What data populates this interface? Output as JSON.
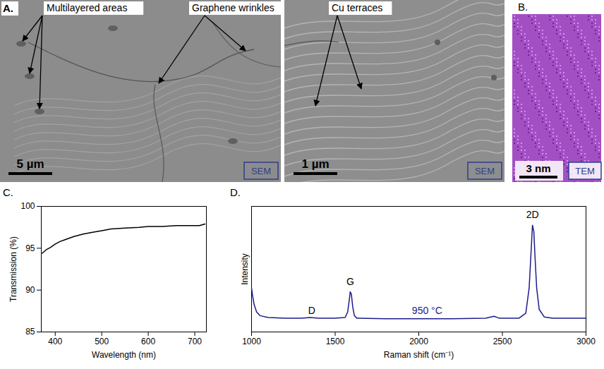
{
  "figure": {
    "A": {
      "letter": "A.",
      "annotations": [
        "Multilayered areas",
        "Graphene wrinkles",
        "Cu terraces"
      ],
      "images": [
        {
          "scale_bar": "5 µm",
          "label": "SEM"
        },
        {
          "scale_bar": "1 µm",
          "label": "SEM"
        }
      ]
    },
    "B": {
      "letter": "B.",
      "scale_bar": "3 nm",
      "label": "TEM"
    }
  },
  "chart_data": [
    {
      "title": "C.",
      "type": "line",
      "x_label": "Wavelength (nm)",
      "y_label": "Transmission (%)",
      "color": "#000000",
      "x": [
        372,
        380,
        390,
        400,
        410,
        420,
        440,
        460,
        480,
        500,
        520,
        550,
        580,
        600,
        630,
        660,
        690,
        710,
        722
      ],
      "values": [
        94.4,
        94.8,
        95.1,
        95.5,
        95.8,
        96.0,
        96.4,
        96.7,
        96.9,
        97.1,
        97.3,
        97.4,
        97.5,
        97.6,
        97.6,
        97.7,
        97.7,
        97.7,
        97.9
      ],
      "xlim": [
        370,
        725
      ],
      "xticks": [
        400,
        500,
        600,
        700
      ],
      "ylim": [
        85,
        100
      ],
      "yticks": [
        85,
        90,
        95,
        100
      ],
      "grid": false
    },
    {
      "title": "D.",
      "type": "line",
      "x_label": "Raman shift (cm⁻¹)",
      "y_label": "Intensity",
      "color": "#1c1c8c",
      "x": [
        1000,
        1005,
        1015,
        1030,
        1050,
        1100,
        1200,
        1300,
        1350,
        1400,
        1500,
        1560,
        1575,
        1585,
        1590,
        1597,
        1605,
        1615,
        1630,
        1800,
        2000,
        2200,
        2400,
        2450,
        2480,
        2600,
        2640,
        2660,
        2670,
        2680,
        2688,
        2695,
        2705,
        2720,
        2750,
        2800,
        3000
      ],
      "values": [
        0.35,
        0.3,
        0.22,
        0.16,
        0.13,
        0.115,
        0.11,
        0.11,
        0.115,
        0.11,
        0.11,
        0.115,
        0.16,
        0.26,
        0.32,
        0.3,
        0.2,
        0.13,
        0.11,
        0.105,
        0.105,
        0.105,
        0.11,
        0.125,
        0.11,
        0.11,
        0.15,
        0.35,
        0.6,
        0.85,
        0.8,
        0.6,
        0.35,
        0.18,
        0.12,
        0.11,
        0.11
      ],
      "xlim": [
        1000,
        3000
      ],
      "xticks": [
        1000,
        1500,
        2000,
        2500,
        3000
      ],
      "ylim": [
        0,
        1
      ],
      "tick_labels": "x",
      "grid": false,
      "annotations": [
        {
          "text": "D",
          "x": 1360,
          "y": 0.17,
          "color": "#000000"
        },
        {
          "text": "G",
          "x": 1590,
          "y": 0.4,
          "color": "#000000"
        },
        {
          "text": "2D",
          "x": 2680,
          "y": 0.93,
          "color": "#000000"
        },
        {
          "text": "950 °C",
          "x": 2050,
          "y": 0.17,
          "color": "#1c1c8c"
        }
      ]
    }
  ]
}
